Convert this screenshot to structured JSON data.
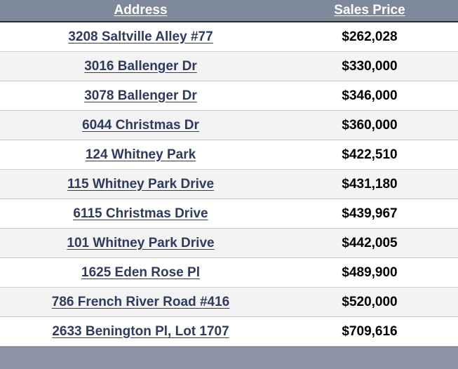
{
  "table": {
    "headers": {
      "address": "Address",
      "sales_price": "Sales Price"
    },
    "rows": [
      {
        "address": "3208 Saltville Alley #77",
        "price": "$262,028"
      },
      {
        "address": "3016 Ballenger Dr",
        "price": "$330,000"
      },
      {
        "address": "3078 Ballenger Dr",
        "price": "$346,000"
      },
      {
        "address": "6044 Christmas Dr",
        "price": "$360,000"
      },
      {
        "address": "124 Whitney Park",
        "price": "$422,510"
      },
      {
        "address": "115 Whitney Park Drive",
        "price": "$431,180"
      },
      {
        "address": "6115 Christmas Drive",
        "price": "$439,967"
      },
      {
        "address": "101 Whitney Park Drive",
        "price": "$442,005"
      },
      {
        "address": "1625 Eden Rose Pl",
        "price": "$489,900"
      },
      {
        "address": "786 French River Road #416",
        "price": "$520,000"
      },
      {
        "address": "2633 Benington Pl, Lot 1707",
        "price": "$709,616"
      }
    ]
  },
  "colors": {
    "header_bg": "#7e8a9c",
    "footer_bg": "#8c96a6",
    "link": "#2e3b5e",
    "alt_row": "#f3f3f3"
  }
}
